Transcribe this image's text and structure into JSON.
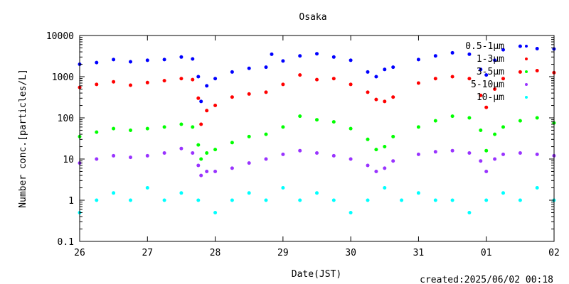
{
  "chart_data": {
    "type": "scatter",
    "title": "Osaka",
    "xlabel": "Date(JST)",
    "ylabel": "Number conc.[particles/L]",
    "y_scale": "log",
    "xlim": [
      "2025-05-26",
      "2025-06-02"
    ],
    "ylim": [
      0.1,
      10000
    ],
    "x_tick_labels": [
      "26",
      "27",
      "28",
      "29",
      "30",
      "31",
      "01",
      "02"
    ],
    "y_tick_labels": [
      "0.1",
      "1",
      "10",
      "100",
      "1000",
      "10000"
    ],
    "grid": false,
    "legend_position": "top-right",
    "footer": "created:2025/06/02 00:18",
    "series": [
      {
        "name": "0.5-1μm",
        "color": "#0000ff",
        "x": [
          "2025-05-26 00:00",
          "2025-05-26 06:00",
          "2025-05-26 12:00",
          "2025-05-26 18:00",
          "2025-05-27 00:00",
          "2025-05-27 06:00",
          "2025-05-27 12:00",
          "2025-05-27 16:00",
          "2025-05-27 18:00",
          "2025-05-27 19:00",
          "2025-05-27 21:00",
          "2025-05-28 00:00",
          "2025-05-28 06:00",
          "2025-05-28 12:00",
          "2025-05-28 18:00",
          "2025-05-28 20:00",
          "2025-05-29 00:00",
          "2025-05-29 06:00",
          "2025-05-29 12:00",
          "2025-05-29 18:00",
          "2025-05-30 00:00",
          "2025-05-30 06:00",
          "2025-05-30 09:00",
          "2025-05-30 12:00",
          "2025-05-30 15:00",
          "2025-05-31 00:00",
          "2025-05-31 06:00",
          "2025-05-31 12:00",
          "2025-05-31 18:00",
          "2025-05-31 22:00",
          "2025-06-01 00:00",
          "2025-06-01 03:00",
          "2025-06-01 06:00",
          "2025-06-01 12:00",
          "2025-06-01 18:00",
          "2025-06-01 23:59"
        ],
        "y": [
          2000,
          2200,
          2600,
          2300,
          2500,
          2600,
          3000,
          2700,
          1000,
          250,
          600,
          900,
          1300,
          1600,
          1700,
          3500,
          2400,
          3200,
          3600,
          3000,
          2500,
          1300,
          1000,
          1500,
          1700,
          2600,
          3200,
          3800,
          3500,
          1500,
          1100,
          2500,
          4500,
          5500,
          4800,
          4700
        ]
      },
      {
        "name": "1-3μm",
        "color": "#ff0000",
        "x": [
          "2025-05-26 00:00",
          "2025-05-26 06:00",
          "2025-05-26 12:00",
          "2025-05-26 18:00",
          "2025-05-27 00:00",
          "2025-05-27 06:00",
          "2025-05-27 12:00",
          "2025-05-27 16:00",
          "2025-05-27 18:00",
          "2025-05-27 19:00",
          "2025-05-27 21:00",
          "2025-05-28 00:00",
          "2025-05-28 06:00",
          "2025-05-28 12:00",
          "2025-05-28 18:00",
          "2025-05-29 00:00",
          "2025-05-29 06:00",
          "2025-05-29 12:00",
          "2025-05-29 18:00",
          "2025-05-30 00:00",
          "2025-05-30 06:00",
          "2025-05-30 09:00",
          "2025-05-30 12:00",
          "2025-05-30 15:00",
          "2025-05-31 00:00",
          "2025-05-31 06:00",
          "2025-05-31 12:00",
          "2025-05-31 18:00",
          "2025-05-31 22:00",
          "2025-06-01 00:00",
          "2025-06-01 03:00",
          "2025-06-01 06:00",
          "2025-06-01 12:00",
          "2025-06-01 18:00",
          "2025-06-01 23:59"
        ],
        "y": [
          550,
          650,
          750,
          620,
          720,
          800,
          900,
          850,
          300,
          70,
          150,
          200,
          320,
          380,
          420,
          650,
          1100,
          850,
          900,
          650,
          420,
          280,
          250,
          320,
          700,
          900,
          1000,
          900,
          350,
          180,
          500,
          900,
          1300,
          1400,
          1250
        ]
      },
      {
        "name": "3-5μm",
        "color": "#00ff00",
        "x": [
          "2025-05-26 00:00",
          "2025-05-26 06:00",
          "2025-05-26 12:00",
          "2025-05-26 18:00",
          "2025-05-27 00:00",
          "2025-05-27 06:00",
          "2025-05-27 12:00",
          "2025-05-27 16:00",
          "2025-05-27 18:00",
          "2025-05-27 19:00",
          "2025-05-27 21:00",
          "2025-05-28 00:00",
          "2025-05-28 06:00",
          "2025-05-28 12:00",
          "2025-05-28 18:00",
          "2025-05-29 00:00",
          "2025-05-29 06:00",
          "2025-05-29 12:00",
          "2025-05-29 18:00",
          "2025-05-30 00:00",
          "2025-05-30 06:00",
          "2025-05-30 09:00",
          "2025-05-30 12:00",
          "2025-05-30 15:00",
          "2025-05-31 00:00",
          "2025-05-31 06:00",
          "2025-05-31 12:00",
          "2025-05-31 18:00",
          "2025-05-31 22:00",
          "2025-06-01 00:00",
          "2025-06-01 03:00",
          "2025-06-01 06:00",
          "2025-06-01 12:00",
          "2025-06-01 18:00",
          "2025-06-01 23:59"
        ],
        "y": [
          35,
          45,
          55,
          50,
          55,
          60,
          70,
          60,
          22,
          10,
          14,
          17,
          25,
          35,
          40,
          60,
          110,
          90,
          80,
          55,
          30,
          17,
          20,
          35,
          60,
          85,
          110,
          100,
          50,
          16,
          40,
          60,
          85,
          100,
          75
        ]
      },
      {
        "name": "5-10μm",
        "color": "#9933ff",
        "x": [
          "2025-05-26 00:00",
          "2025-05-26 06:00",
          "2025-05-26 12:00",
          "2025-05-26 18:00",
          "2025-05-27 00:00",
          "2025-05-27 06:00",
          "2025-05-27 12:00",
          "2025-05-27 16:00",
          "2025-05-27 18:00",
          "2025-05-27 19:00",
          "2025-05-27 21:00",
          "2025-05-28 00:00",
          "2025-05-28 06:00",
          "2025-05-28 12:00",
          "2025-05-28 18:00",
          "2025-05-29 00:00",
          "2025-05-29 06:00",
          "2025-05-29 12:00",
          "2025-05-29 18:00",
          "2025-05-30 00:00",
          "2025-05-30 06:00",
          "2025-05-30 09:00",
          "2025-05-30 12:00",
          "2025-05-30 15:00",
          "2025-05-31 00:00",
          "2025-05-31 06:00",
          "2025-05-31 12:00",
          "2025-05-31 18:00",
          "2025-05-31 22:00",
          "2025-06-01 00:00",
          "2025-06-01 03:00",
          "2025-06-01 06:00",
          "2025-06-01 12:00",
          "2025-06-01 18:00",
          "2025-06-01 23:59"
        ],
        "y": [
          8,
          10,
          12,
          11,
          12,
          14,
          18,
          14,
          7,
          4,
          5,
          5,
          6,
          8,
          10,
          13,
          16,
          14,
          12,
          10,
          7,
          5,
          6,
          9,
          13,
          15,
          16,
          14,
          9,
          5,
          10,
          13,
          14,
          13,
          12
        ]
      },
      {
        "name": "10-μm",
        "color": "#00ffff",
        "x": [
          "2025-05-26 00:00",
          "2025-05-26 06:00",
          "2025-05-26 12:00",
          "2025-05-26 18:00",
          "2025-05-27 00:00",
          "2025-05-27 06:00",
          "2025-05-27 12:00",
          "2025-05-27 18:00",
          "2025-05-28 00:00",
          "2025-05-28 06:00",
          "2025-05-28 12:00",
          "2025-05-28 18:00",
          "2025-05-29 00:00",
          "2025-05-29 06:00",
          "2025-05-29 12:00",
          "2025-05-29 18:00",
          "2025-05-30 00:00",
          "2025-05-30 06:00",
          "2025-05-30 12:00",
          "2025-05-30 18:00",
          "2025-05-31 00:00",
          "2025-05-31 06:00",
          "2025-05-31 12:00",
          "2025-05-31 18:00",
          "2025-06-01 00:00",
          "2025-06-01 06:00",
          "2025-06-01 12:00",
          "2025-06-01 18:00",
          "2025-06-01 23:59"
        ],
        "y": [
          0.5,
          1,
          1.5,
          1,
          2,
          1,
          1.5,
          1,
          0.5,
          1,
          1.5,
          1,
          2,
          1,
          1.5,
          1,
          0.5,
          1,
          2,
          1,
          1.5,
          1,
          1,
          0.5,
          1,
          1.5,
          1,
          2,
          1
        ]
      }
    ]
  }
}
